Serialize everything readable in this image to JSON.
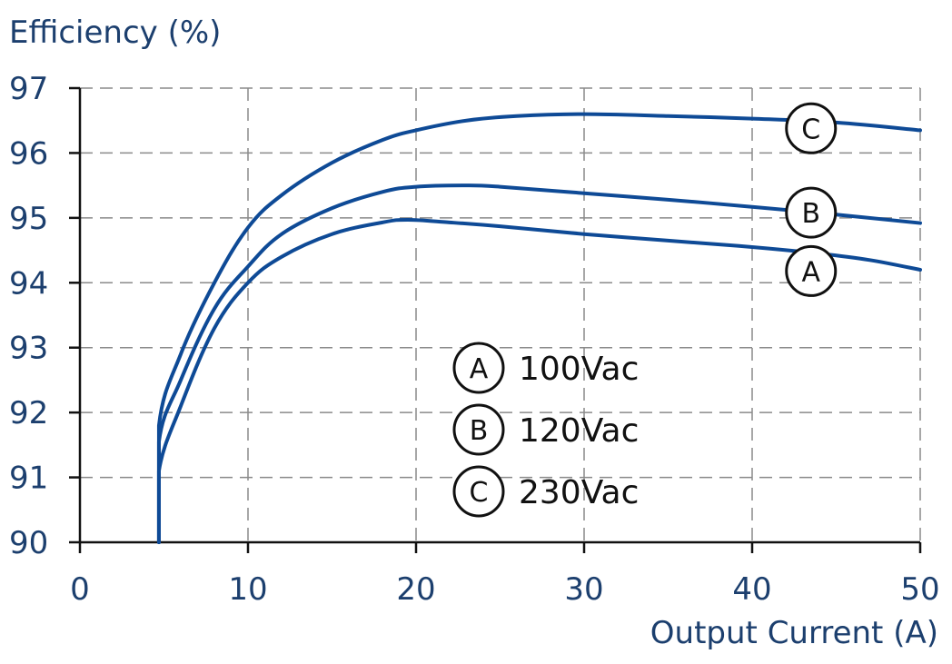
{
  "chart_data": {
    "type": "line",
    "ylabel": "Efficiency (%)",
    "xlabel": "Output Current (A)",
    "xlim": [
      0,
      50
    ],
    "ylim": [
      90,
      97
    ],
    "xticks": [
      "0",
      "10",
      "20",
      "30",
      "40",
      "50"
    ],
    "yticks": [
      "90",
      "91",
      "92",
      "93",
      "94",
      "95",
      "96",
      "97"
    ],
    "grid": true,
    "line_color": "#0e4a96",
    "series": [
      {
        "name": "A",
        "legend_label": "100Vac",
        "marker_letter": "A",
        "points": [
          [
            4.7,
            90.0
          ],
          [
            4.7,
            91.1
          ],
          [
            6,
            92.1
          ],
          [
            8,
            93.3
          ],
          [
            10,
            94.0
          ],
          [
            12,
            94.4
          ],
          [
            15,
            94.75
          ],
          [
            18,
            94.93
          ],
          [
            19.5,
            94.97
          ],
          [
            22,
            94.93
          ],
          [
            25,
            94.87
          ],
          [
            30,
            94.75
          ],
          [
            35,
            94.65
          ],
          [
            40,
            94.55
          ],
          [
            44,
            94.45
          ],
          [
            47,
            94.35
          ],
          [
            50,
            94.2
          ]
        ]
      },
      {
        "name": "B",
        "legend_label": "120Vac",
        "marker_letter": "B",
        "points": [
          [
            4.7,
            90.0
          ],
          [
            4.7,
            91.55
          ],
          [
            6,
            92.5
          ],
          [
            8,
            93.6
          ],
          [
            10,
            94.25
          ],
          [
            12,
            94.75
          ],
          [
            15,
            95.15
          ],
          [
            18,
            95.4
          ],
          [
            20,
            95.48
          ],
          [
            23,
            95.5
          ],
          [
            25,
            95.48
          ],
          [
            30,
            95.38
          ],
          [
            35,
            95.28
          ],
          [
            40,
            95.17
          ],
          [
            45,
            95.05
          ],
          [
            50,
            94.92
          ]
        ]
      },
      {
        "name": "C",
        "legend_label": "230Vac",
        "marker_letter": "C",
        "points": [
          [
            4.7,
            90.0
          ],
          [
            4.7,
            91.8
          ],
          [
            6,
            92.9
          ],
          [
            8,
            94.0
          ],
          [
            10,
            94.85
          ],
          [
            12,
            95.35
          ],
          [
            15,
            95.85
          ],
          [
            18,
            96.2
          ],
          [
            20,
            96.35
          ],
          [
            23,
            96.5
          ],
          [
            26,
            96.57
          ],
          [
            30,
            96.6
          ],
          [
            35,
            96.57
          ],
          [
            40,
            96.53
          ],
          [
            45,
            96.47
          ],
          [
            50,
            96.35
          ]
        ]
      }
    ],
    "curve_markers": [
      {
        "letter": "C",
        "x": 43.5,
        "y": 96.38
      },
      {
        "letter": "B",
        "x": 43.5,
        "y": 95.08
      },
      {
        "letter": "A",
        "x": 43.5,
        "y": 94.18
      }
    ]
  }
}
